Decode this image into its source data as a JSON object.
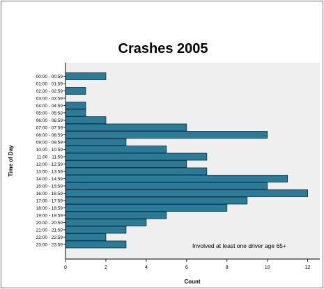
{
  "chart_data": {
    "type": "bar",
    "orientation": "horizontal",
    "title": "Crashes 2005",
    "xlabel": "Count",
    "ylabel": "Time of Day",
    "annotation": "Involved at least one driver age 65+",
    "xlim": [
      0,
      12.6
    ],
    "xticks": [
      0,
      2,
      4,
      6,
      8,
      10,
      12
    ],
    "grid": false,
    "categories": [
      "00:00 - 00:59",
      "01:00 - 01:59",
      "02:00 - 02:59",
      "03:00 - 03:59",
      "04:00 - 04:59",
      "05:00 - 05:59",
      "06:00 - 06:59",
      "07:00 - 07:59",
      "08:00 - 08:59",
      "09:00 - 09:59",
      "10:00 - 10:59",
      "11:00 - 11:59",
      "12:00 - 12:59",
      "13:00 - 13:59",
      "14:00 - 14:59",
      "15:00 - 15:59",
      "16:00 - 16:59",
      "17:00 - 17:59",
      "18:00 - 18:59",
      "19:00 - 19:59",
      "20:00 - 20:59",
      "21:00 - 21:59",
      "22:00 - 22:59",
      "23:00 - 23:59"
    ],
    "values": [
      2,
      0,
      1,
      0,
      1,
      1,
      2,
      6,
      10,
      3,
      5,
      7,
      6,
      7,
      11,
      10,
      12,
      9,
      8,
      5,
      4,
      3,
      2,
      3
    ],
    "colors": {
      "bar_fill": "#2b7a98",
      "bar_stroke": "#0d2d3c",
      "plot_background": "#efefef",
      "frame_border": "#3f7fa6"
    }
  }
}
